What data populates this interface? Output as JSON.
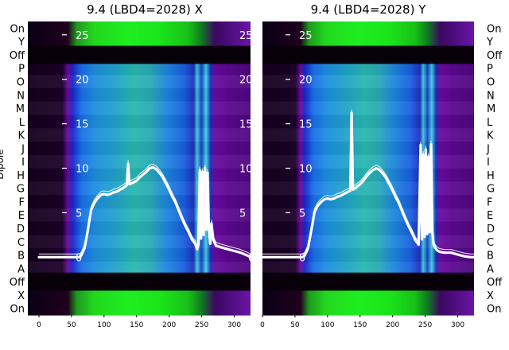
{
  "chart_data": [
    {
      "type": "heatmap",
      "title": "9.4 (LBD4=2028) X",
      "ylabel": "Dipole",
      "row_labels": [
        "On",
        "Y",
        "Off",
        "P",
        "O",
        "N",
        "M",
        "L",
        "K",
        "J",
        "I",
        "H",
        "G",
        "F",
        "E",
        "D",
        "C",
        "B",
        "A",
        "Off",
        "X",
        "On"
      ],
      "x_ticks": [
        0,
        50,
        100,
        150,
        200,
        250,
        300
      ],
      "y_ticks": [
        0,
        5,
        10,
        15,
        20,
        25
      ],
      "xlim": [
        0,
        325
      ],
      "ylim": [
        -6.5,
        26.5
      ],
      "series": [
        {
          "x": [
            0,
            62,
            65,
            70,
            75,
            80,
            85,
            90,
            95,
            100,
            105,
            110,
            115,
            120,
            125,
            130,
            135,
            137,
            139,
            142,
            145,
            150,
            155,
            160,
            165,
            170,
            175,
            180,
            185,
            190,
            195,
            200,
            205,
            210,
            215,
            220,
            225,
            230,
            235,
            240,
            243,
            245,
            247,
            249,
            251,
            253,
            255,
            257,
            259,
            261,
            263,
            265,
            268,
            272,
            280,
            290,
            300,
            310,
            320,
            325
          ],
          "y": [
            0,
            0,
            0.2,
            1,
            3,
            5.3,
            6.1,
            6.6,
            7,
            7.1,
            7,
            7.1,
            7.3,
            7.4,
            7.6,
            7.8,
            8.1,
            10.5,
            8.2,
            8.3,
            8.4,
            8.6,
            9,
            9.3,
            9.6,
            10,
            10.1,
            9.9,
            9.5,
            9,
            8.3,
            7.6,
            6.8,
            6.1,
            5.2,
            4.3,
            3.5,
            2.8,
            2,
            1.5,
            0.9,
            1.4,
            9.8,
            2.1,
            9.6,
            2.5,
            10,
            3.1,
            9.5,
            3.2,
            1.5,
            3.8,
            1.9,
            1.3,
            1.1,
            0.9,
            0.7,
            0.5,
            0.2,
            0
          ]
        }
      ]
    },
    {
      "type": "heatmap",
      "title": "9.4 (LBD4=2028) Y",
      "ylabel": "",
      "row_labels": [
        "On",
        "Y",
        "Off",
        "P",
        "O",
        "N",
        "M",
        "L",
        "K",
        "J",
        "I",
        "H",
        "G",
        "F",
        "E",
        "D",
        "C",
        "B",
        "A",
        "Off",
        "X",
        "On"
      ],
      "x_ticks": [
        0,
        50,
        100,
        150,
        200,
        250,
        300
      ],
      "y_ticks": [
        0,
        5,
        10,
        15,
        20,
        25
      ],
      "xlim": [
        0,
        325
      ],
      "ylim": [
        -6.5,
        26.5
      ],
      "series": [
        {
          "x": [
            0,
            62,
            65,
            70,
            75,
            80,
            85,
            90,
            95,
            100,
            105,
            110,
            115,
            120,
            125,
            130,
            135,
            137,
            139,
            142,
            145,
            150,
            155,
            160,
            165,
            170,
            175,
            180,
            185,
            190,
            195,
            200,
            205,
            210,
            215,
            220,
            225,
            230,
            235,
            240,
            243,
            245,
            247,
            249,
            251,
            253,
            255,
            257,
            259,
            261,
            263,
            265,
            268,
            272,
            280,
            290,
            300,
            310,
            320,
            325
          ],
          "y": [
            0,
            0,
            0.2,
            1,
            3,
            5.1,
            5.8,
            6.2,
            6.5,
            6.6,
            6.5,
            6.6,
            6.8,
            6.9,
            7.1,
            7.3,
            7.5,
            16.2,
            7.6,
            7.7,
            7.9,
            8.2,
            8.6,
            9.1,
            9.5,
            9.8,
            10,
            9.8,
            9.4,
            8.9,
            8.2,
            7.5,
            6.7,
            6,
            5.1,
            4.2,
            3.4,
            2.7,
            1.9,
            1.4,
            12.6,
            2,
            11.5,
            2.3,
            12.1,
            2.6,
            11.3,
            2.8,
            12.7,
            2.9,
            1.4,
            1.1,
            0.8,
            0.6,
            0.5,
            0.5,
            0.3,
            0.1,
            0,
            0
          ]
        }
      ]
    }
  ]
}
